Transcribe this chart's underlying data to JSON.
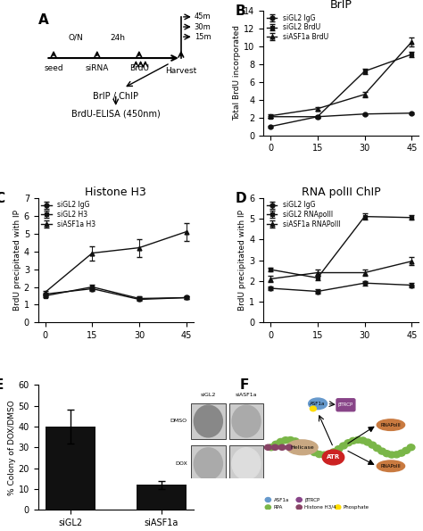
{
  "panel_B": {
    "title": "BrIP",
    "ylabel": "Total BrdU incorporated",
    "xdata": [
      0,
      15,
      30,
      45
    ],
    "series": [
      {
        "label": "siGL2 IgG",
        "y": [
          1.0,
          2.1,
          2.4,
          2.5
        ],
        "yerr": [
          0.1,
          0.1,
          0.1,
          0.1
        ],
        "marker": "o"
      },
      {
        "label": "siGL2 BrdU",
        "y": [
          2.1,
          2.1,
          7.2,
          9.1
        ],
        "yerr": [
          0.1,
          0.1,
          0.3,
          0.3
        ],
        "marker": "s"
      },
      {
        "label": "siASF1a BrdU",
        "y": [
          2.2,
          3.0,
          4.6,
          10.5
        ],
        "yerr": [
          0.2,
          0.2,
          0.3,
          0.5
        ],
        "marker": "^"
      }
    ],
    "ylim": [
      0,
      14
    ],
    "yticks": [
      0,
      2,
      4,
      6,
      8,
      10,
      12,
      14
    ]
  },
  "panel_C": {
    "title": "Histone H3",
    "ylabel": "BrdU precipitated with IP",
    "xdata": [
      0,
      15,
      30,
      45
    ],
    "series": [
      {
        "label": "siGL2 IgG",
        "y": [
          1.6,
          1.9,
          1.3,
          1.4
        ],
        "yerr": [
          0.1,
          0.1,
          0.1,
          0.1
        ],
        "marker": "o"
      },
      {
        "label": "siGL2 H3",
        "y": [
          1.5,
          2.0,
          1.35,
          1.4
        ],
        "yerr": [
          0.1,
          0.15,
          0.1,
          0.1
        ],
        "marker": "s"
      },
      {
        "label": "siASF1a H3",
        "y": [
          1.7,
          3.9,
          4.2,
          5.1
        ],
        "yerr": [
          0.1,
          0.4,
          0.5,
          0.5
        ],
        "marker": "^"
      }
    ],
    "ylim": [
      0,
      7
    ],
    "yticks": [
      0,
      1,
      2,
      3,
      4,
      5,
      6,
      7
    ]
  },
  "panel_D": {
    "title": "RNA polII ChIP",
    "ylabel": "BrdU precipitated with IP",
    "xdata": [
      0,
      15,
      30,
      45
    ],
    "series": [
      {
        "label": "siGL2 IgG",
        "y": [
          1.65,
          1.5,
          1.9,
          1.8
        ],
        "yerr": [
          0.1,
          0.1,
          0.1,
          0.1
        ],
        "marker": "o"
      },
      {
        "label": "siGL2 RNApolII",
        "y": [
          2.55,
          2.15,
          5.1,
          5.05
        ],
        "yerr": [
          0.1,
          0.1,
          0.15,
          0.1
        ],
        "marker": "s"
      },
      {
        "label": "siASF1a RNAPolII",
        "y": [
          2.1,
          2.4,
          2.4,
          2.95
        ],
        "yerr": [
          0.15,
          0.15,
          0.15,
          0.2
        ],
        "marker": "^"
      }
    ],
    "ylim": [
      0,
      6
    ],
    "yticks": [
      0,
      1,
      2,
      3,
      4,
      5,
      6
    ]
  },
  "panel_E": {
    "ylabel": "% Colony of DOX/DMSO",
    "categories": [
      "siGL2",
      "siASF1a"
    ],
    "values": [
      40.0,
      12.0
    ],
    "errors": [
      8.0,
      2.0
    ],
    "bar_color": "#111111",
    "yticks": [
      0,
      10,
      20,
      30,
      40,
      50,
      60
    ],
    "ylim": [
      0,
      60
    ],
    "inset_labels_top": [
      "siGL2",
      "siASF1a"
    ],
    "inset_labels_left": [
      "DMSO",
      "DOX"
    ]
  }
}
